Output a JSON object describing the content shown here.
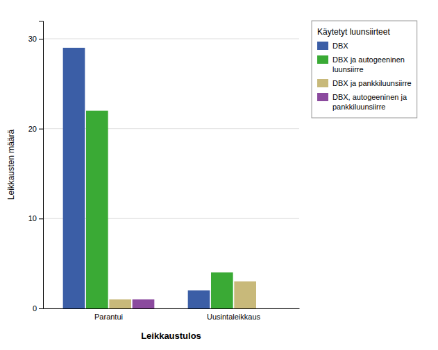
{
  "chart_data": {
    "type": "bar",
    "categories": [
      "Parantui",
      "Uusintaleikkaus"
    ],
    "series": [
      {
        "name": "DBX",
        "color": "#3b5ea6",
        "values": [
          29,
          2
        ]
      },
      {
        "name": "DBX ja autogeeninen\nluunsiirre",
        "color": "#3aaa35",
        "values": [
          22,
          4
        ]
      },
      {
        "name": "DBX ja pankkiluunsiirre",
        "color": "#c8b97a",
        "values": [
          1,
          3
        ]
      },
      {
        "name": "DBX, autogeeninen ja\npankkiluunsiirre",
        "color": "#8b4a9e",
        "values": [
          1,
          0
        ]
      }
    ],
    "legend_title": "Käytetyt luunsiirteet",
    "xlabel": "Leikkaustulos",
    "ylabel": "Leikkausten määrä",
    "ylim": [
      0,
      32
    ],
    "yticks": [
      0,
      10,
      20,
      30
    ],
    "grid": true,
    "legend": "right"
  }
}
